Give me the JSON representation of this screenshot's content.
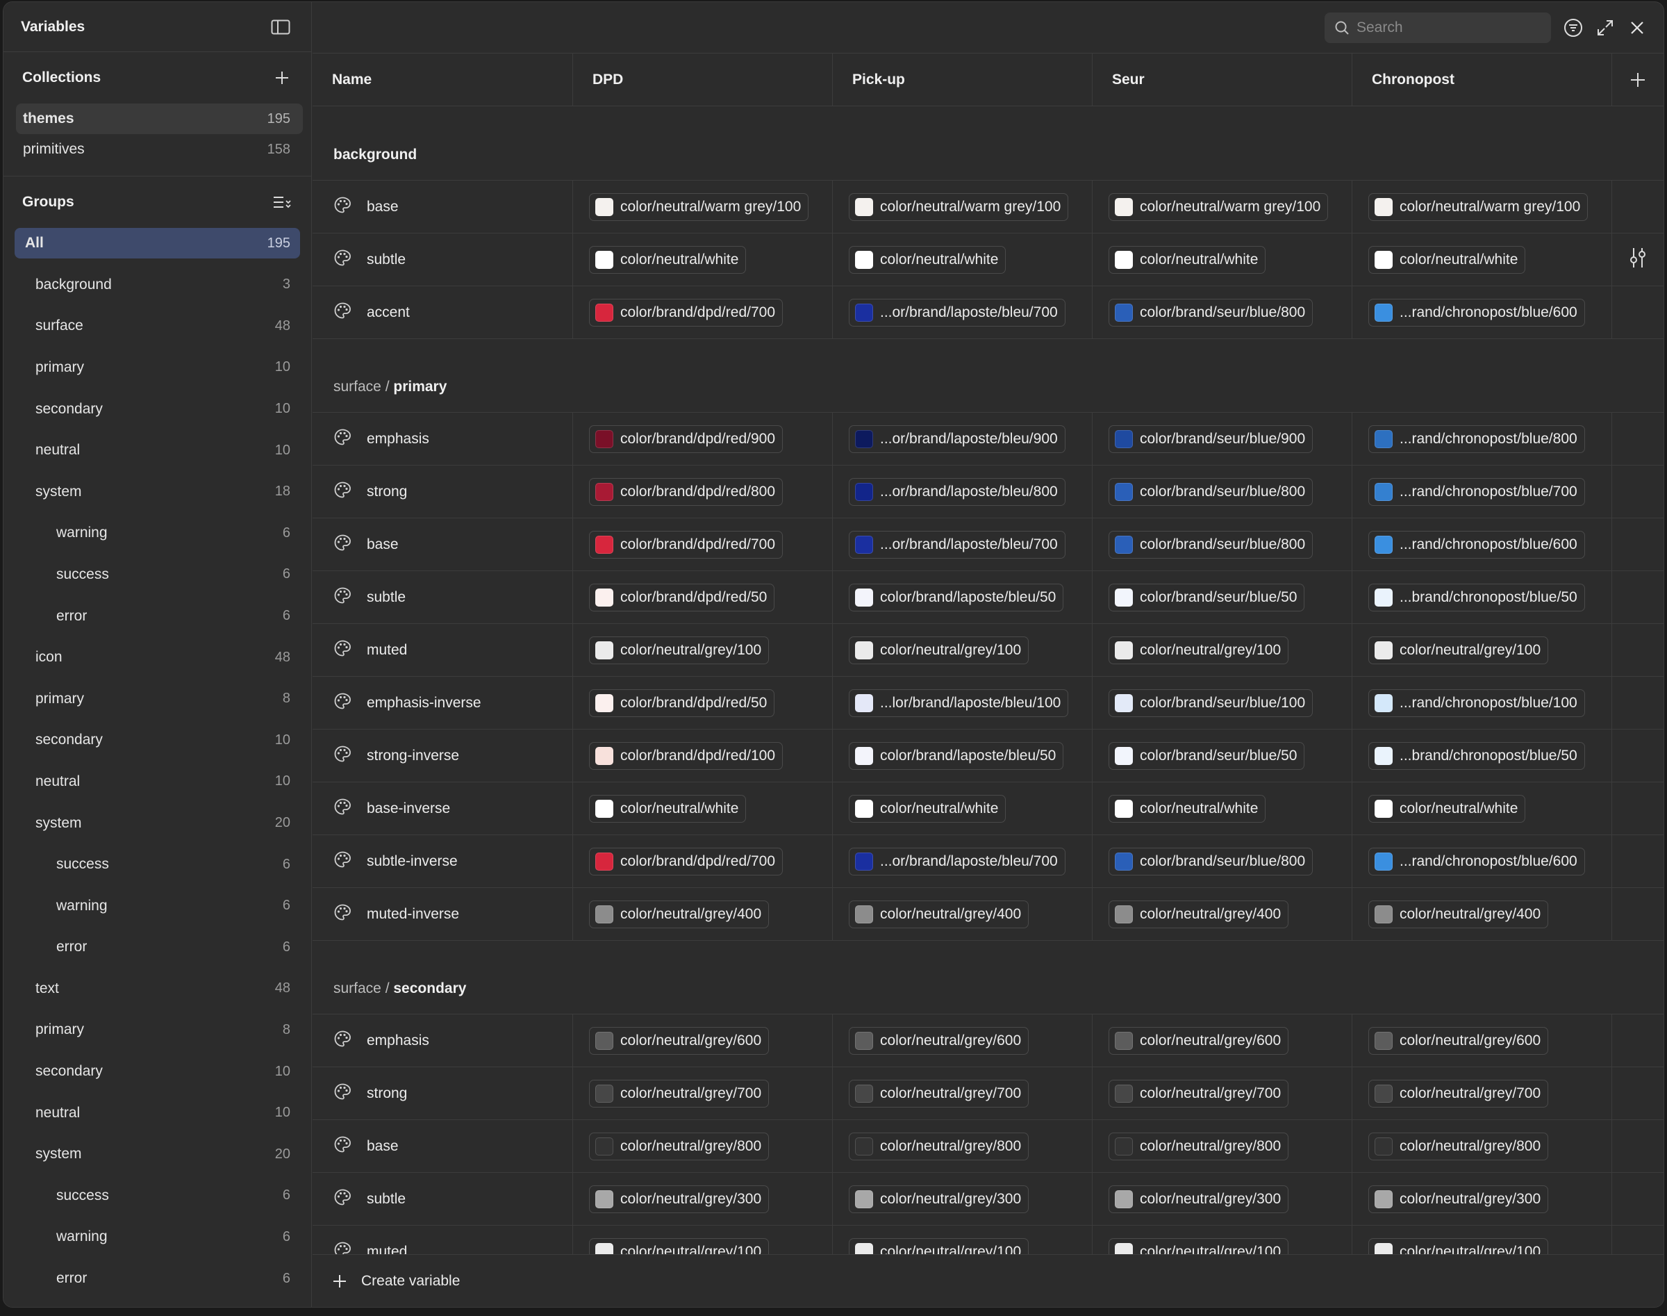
{
  "sidebar": {
    "title": "Variables",
    "collections_title": "Collections",
    "collections": [
      {
        "label": "themes",
        "count": "195",
        "active": true
      },
      {
        "label": "primitives",
        "count": "158",
        "active": false
      }
    ],
    "groups_title": "Groups",
    "groups": [
      {
        "label": "All",
        "count": "195",
        "level": 0
      },
      {
        "label": "background",
        "count": "3",
        "level": 1
      },
      {
        "label": "surface",
        "count": "48",
        "level": 1
      },
      {
        "label": "primary",
        "count": "10",
        "level": 2
      },
      {
        "label": "secondary",
        "count": "10",
        "level": 2
      },
      {
        "label": "neutral",
        "count": "10",
        "level": 2
      },
      {
        "label": "system",
        "count": "18",
        "level": 2
      },
      {
        "label": "warning",
        "count": "6",
        "level": 3
      },
      {
        "label": "success",
        "count": "6",
        "level": 3
      },
      {
        "label": "error",
        "count": "6",
        "level": 3
      },
      {
        "label": "icon",
        "count": "48",
        "level": 1
      },
      {
        "label": "primary",
        "count": "8",
        "level": 2
      },
      {
        "label": "secondary",
        "count": "10",
        "level": 2
      },
      {
        "label": "neutral",
        "count": "10",
        "level": 2
      },
      {
        "label": "system",
        "count": "20",
        "level": 2
      },
      {
        "label": "success",
        "count": "6",
        "level": 3
      },
      {
        "label": "warning",
        "count": "6",
        "level": 3
      },
      {
        "label": "error",
        "count": "6",
        "level": 3
      },
      {
        "label": "text",
        "count": "48",
        "level": 1
      },
      {
        "label": "primary",
        "count": "8",
        "level": 2
      },
      {
        "label": "secondary",
        "count": "10",
        "level": 2
      },
      {
        "label": "neutral",
        "count": "10",
        "level": 2
      },
      {
        "label": "system",
        "count": "20",
        "level": 2
      },
      {
        "label": "success",
        "count": "6",
        "level": 3
      },
      {
        "label": "warning",
        "count": "6",
        "level": 3
      },
      {
        "label": "error",
        "count": "6",
        "level": 3
      }
    ]
  },
  "search": {
    "placeholder": "Search"
  },
  "columns": [
    "Name",
    "DPD",
    "Pick-up",
    "Seur",
    "Chronopost"
  ],
  "groups": [
    {
      "prefix": "",
      "title": "background",
      "rows": [
        {
          "name": "base",
          "values": [
            {
              "label": "color/neutral/warm grey/100",
              "color": "#f4f1ee"
            },
            {
              "label": "color/neutral/warm grey/100",
              "color": "#f4f1ee"
            },
            {
              "label": "color/neutral/warm grey/100",
              "color": "#f4f1ee"
            },
            {
              "label": "color/neutral/warm grey/100",
              "color": "#f4f1ee"
            }
          ]
        },
        {
          "name": "subtle",
          "values": [
            {
              "label": "color/neutral/white",
              "color": "#ffffff"
            },
            {
              "label": "color/neutral/white",
              "color": "#ffffff"
            },
            {
              "label": "color/neutral/white",
              "color": "#ffffff"
            },
            {
              "label": "color/neutral/white",
              "color": "#ffffff"
            }
          ]
        },
        {
          "name": "accent",
          "values": [
            {
              "label": "color/brand/dpd/red/700",
              "color": "#d7263d"
            },
            {
              "label": "...or/brand/laposte/bleu/700",
              "color": "#1a2fa0"
            },
            {
              "label": "color/brand/seur/blue/800",
              "color": "#2a5fb8"
            },
            {
              "label": "...rand/chronopost/blue/600",
              "color": "#3a8fe0"
            }
          ]
        }
      ]
    },
    {
      "prefix": "surface / ",
      "title": "primary",
      "rows": [
        {
          "name": "emphasis",
          "values": [
            {
              "label": "color/brand/dpd/red/900",
              "color": "#7a1028"
            },
            {
              "label": "...or/brand/laposte/bleu/900",
              "color": "#0d1a5e"
            },
            {
              "label": "color/brand/seur/blue/900",
              "color": "#1f4aa0"
            },
            {
              "label": "...rand/chronopost/blue/800",
              "color": "#2d70c0"
            }
          ]
        },
        {
          "name": "strong",
          "values": [
            {
              "label": "color/brand/dpd/red/800",
              "color": "#a81a34"
            },
            {
              "label": "...or/brand/laposte/bleu/800",
              "color": "#12258a"
            },
            {
              "label": "color/brand/seur/blue/800",
              "color": "#2a5fb8"
            },
            {
              "label": "...rand/chronopost/blue/700",
              "color": "#3480d0"
            }
          ]
        },
        {
          "name": "base",
          "values": [
            {
              "label": "color/brand/dpd/red/700",
              "color": "#d7263d"
            },
            {
              "label": "...or/brand/laposte/bleu/700",
              "color": "#1a2fa0"
            },
            {
              "label": "color/brand/seur/blue/800",
              "color": "#2a5fb8"
            },
            {
              "label": "...rand/chronopost/blue/600",
              "color": "#3a8fe0"
            }
          ]
        },
        {
          "name": "subtle",
          "values": [
            {
              "label": "color/brand/dpd/red/50",
              "color": "#fbf0ee"
            },
            {
              "label": "color/brand/laposte/bleu/50",
              "color": "#f3f4fb"
            },
            {
              "label": "color/brand/seur/blue/50",
              "color": "#f2f5fc"
            },
            {
              "label": "...brand/chronopost/blue/50",
              "color": "#eaf3fc"
            }
          ]
        },
        {
          "name": "muted",
          "values": [
            {
              "label": "color/neutral/grey/100",
              "color": "#ebebeb"
            },
            {
              "label": "color/neutral/grey/100",
              "color": "#ebebeb"
            },
            {
              "label": "color/neutral/grey/100",
              "color": "#ebebeb"
            },
            {
              "label": "color/neutral/grey/100",
              "color": "#ebebeb"
            }
          ]
        },
        {
          "name": "emphasis-inverse",
          "values": [
            {
              "label": "color/brand/dpd/red/50",
              "color": "#fbf0ee"
            },
            {
              "label": "...lor/brand/laposte/bleu/100",
              "color": "#e4e8f8"
            },
            {
              "label": "color/brand/seur/blue/100",
              "color": "#e3eaf8"
            },
            {
              "label": "...rand/chronopost/blue/100",
              "color": "#d4e8fa"
            }
          ]
        },
        {
          "name": "strong-inverse",
          "values": [
            {
              "label": "color/brand/dpd/red/100",
              "color": "#f8e1dc"
            },
            {
              "label": "color/brand/laposte/bleu/50",
              "color": "#f3f4fb"
            },
            {
              "label": "color/brand/seur/blue/50",
              "color": "#f2f5fc"
            },
            {
              "label": "...brand/chronopost/blue/50",
              "color": "#eaf3fc"
            }
          ]
        },
        {
          "name": "base-inverse",
          "values": [
            {
              "label": "color/neutral/white",
              "color": "#ffffff"
            },
            {
              "label": "color/neutral/white",
              "color": "#ffffff"
            },
            {
              "label": "color/neutral/white",
              "color": "#ffffff"
            },
            {
              "label": "color/neutral/white",
              "color": "#ffffff"
            }
          ]
        },
        {
          "name": "subtle-inverse",
          "values": [
            {
              "label": "color/brand/dpd/red/700",
              "color": "#d7263d"
            },
            {
              "label": "...or/brand/laposte/bleu/700",
              "color": "#1a2fa0"
            },
            {
              "label": "color/brand/seur/blue/800",
              "color": "#2a5fb8"
            },
            {
              "label": "...rand/chronopost/blue/600",
              "color": "#3a8fe0"
            }
          ]
        },
        {
          "name": "muted-inverse",
          "values": [
            {
              "label": "color/neutral/grey/400",
              "color": "#8c8c8c"
            },
            {
              "label": "color/neutral/grey/400",
              "color": "#8c8c8c"
            },
            {
              "label": "color/neutral/grey/400",
              "color": "#8c8c8c"
            },
            {
              "label": "color/neutral/grey/400",
              "color": "#8c8c8c"
            }
          ]
        }
      ]
    },
    {
      "prefix": "surface / ",
      "title": "secondary",
      "rows": [
        {
          "name": "emphasis",
          "values": [
            {
              "label": "color/neutral/grey/600",
              "color": "#5c5c5c"
            },
            {
              "label": "color/neutral/grey/600",
              "color": "#5c5c5c"
            },
            {
              "label": "color/neutral/grey/600",
              "color": "#5c5c5c"
            },
            {
              "label": "color/neutral/grey/600",
              "color": "#5c5c5c"
            }
          ]
        },
        {
          "name": "strong",
          "values": [
            {
              "label": "color/neutral/grey/700",
              "color": "#474747"
            },
            {
              "label": "color/neutral/grey/700",
              "color": "#474747"
            },
            {
              "label": "color/neutral/grey/700",
              "color": "#474747"
            },
            {
              "label": "color/neutral/grey/700",
              "color": "#474747"
            }
          ]
        },
        {
          "name": "base",
          "values": [
            {
              "label": "color/neutral/grey/800",
              "color": "#333333"
            },
            {
              "label": "color/neutral/grey/800",
              "color": "#333333"
            },
            {
              "label": "color/neutral/grey/800",
              "color": "#333333"
            },
            {
              "label": "color/neutral/grey/800",
              "color": "#333333"
            }
          ]
        },
        {
          "name": "subtle",
          "values": [
            {
              "label": "color/neutral/grey/300",
              "color": "#a8a8a8"
            },
            {
              "label": "color/neutral/grey/300",
              "color": "#a8a8a8"
            },
            {
              "label": "color/neutral/grey/300",
              "color": "#a8a8a8"
            },
            {
              "label": "color/neutral/grey/300",
              "color": "#a8a8a8"
            }
          ]
        },
        {
          "name": "muted",
          "values": [
            {
              "label": "color/neutral/grey/100",
              "color": "#ebebeb"
            },
            {
              "label": "color/neutral/grey/100",
              "color": "#ebebeb"
            },
            {
              "label": "color/neutral/grey/100",
              "color": "#ebebeb"
            },
            {
              "label": "color/neutral/grey/100",
              "color": "#ebebeb"
            }
          ]
        }
      ]
    }
  ],
  "footer": {
    "create_label": "Create variable"
  }
}
